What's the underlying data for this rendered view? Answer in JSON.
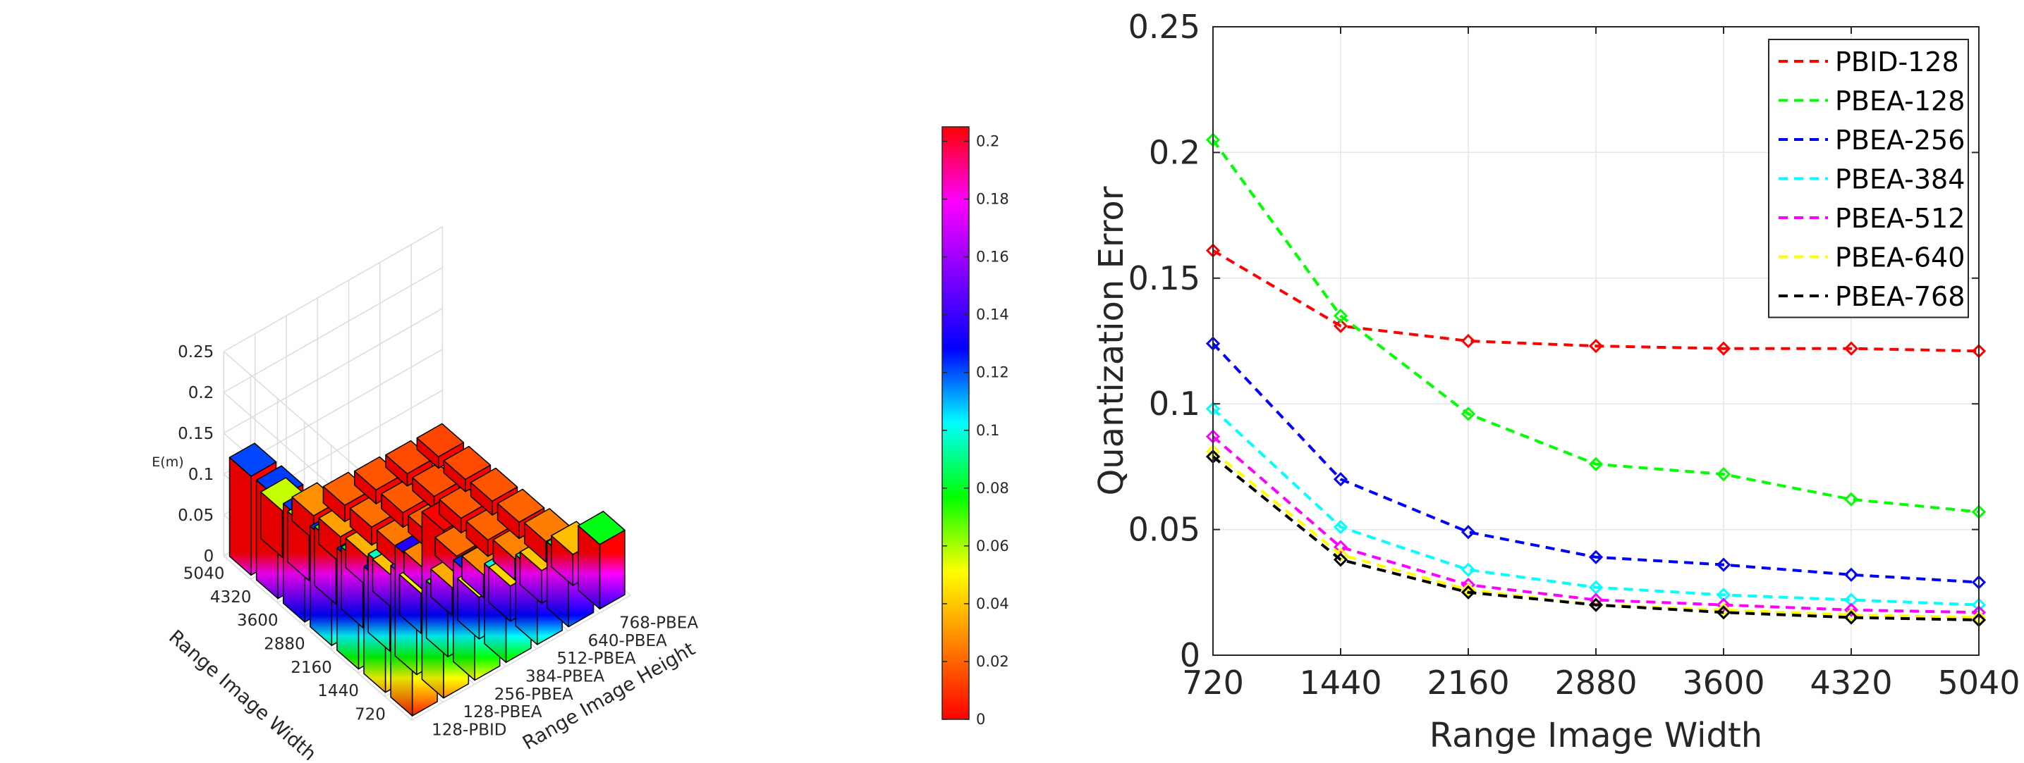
{
  "chart_data": [
    {
      "type": "bar3d",
      "zlabel": "E(m)",
      "xlabel": "Range Image Width",
      "ylabel": "Range Image Height",
      "width_categories": [
        "720",
        "1440",
        "2160",
        "2880",
        "3600",
        "4320",
        "5040"
      ],
      "height_categories": [
        "128-PBID",
        "128-PBEA",
        "256-PBEA",
        "384-PBEA",
        "512-PBEA",
        "640-PBEA",
        "768-PBEA"
      ],
      "zlim": [
        0,
        0.25
      ],
      "zticks": [
        "0",
        "0.05",
        "0.1",
        "0.15",
        "0.2",
        "0.25"
      ],
      "values": [
        [
          0.161,
          0.205,
          0.124,
          0.098,
          0.087,
          0.081,
          0.079
        ],
        [
          0.131,
          0.135,
          0.07,
          0.051,
          0.043,
          0.04,
          0.038
        ],
        [
          0.125,
          0.096,
          0.049,
          0.034,
          0.028,
          0.026,
          0.025
        ],
        [
          0.123,
          0.076,
          0.039,
          0.027,
          0.022,
          0.02,
          0.02
        ],
        [
          0.122,
          0.072,
          0.036,
          0.024,
          0.02,
          0.018,
          0.017
        ],
        [
          0.122,
          0.062,
          0.032,
          0.022,
          0.018,
          0.016,
          0.015
        ],
        [
          0.121,
          0.057,
          0.029,
          0.02,
          0.017,
          0.015,
          0.014
        ]
      ],
      "colormap": [
        "#ff0000",
        "#ff8000",
        "#ffff00",
        "#00ff00",
        "#00ffff",
        "#0000ff",
        "#8000ff",
        "#ff00ff",
        "#ff0000"
      ],
      "colorbar": {
        "range": [
          0,
          0.205
        ],
        "ticks": [
          "0",
          "0.02",
          "0.04",
          "0.06",
          "0.08",
          "0.1",
          "0.12",
          "0.14",
          "0.16",
          "0.18",
          "0.2"
        ]
      }
    },
    {
      "type": "line",
      "xlabel": "Range Image Width",
      "ylabel": "Quantization Error",
      "x": [
        720,
        1440,
        2160,
        2880,
        3600,
        4320,
        5040
      ],
      "xticks": [
        "720",
        "1440",
        "2160",
        "2880",
        "3600",
        "4320",
        "5040"
      ],
      "ylim": [
        0,
        0.25
      ],
      "yticks": [
        "0",
        "0.05",
        "0.1",
        "0.15",
        "0.2",
        "0.25"
      ],
      "grid": true,
      "legend_position": "top-right",
      "series": [
        {
          "name": "PBID-128",
          "color": "#ff0000",
          "values": [
            0.161,
            0.131,
            0.125,
            0.123,
            0.122,
            0.122,
            0.121
          ]
        },
        {
          "name": "PBEA-128",
          "color": "#00ff00",
          "values": [
            0.205,
            0.135,
            0.096,
            0.076,
            0.072,
            0.062,
            0.057
          ]
        },
        {
          "name": "PBEA-256",
          "color": "#0000ff",
          "values": [
            0.124,
            0.07,
            0.049,
            0.039,
            0.036,
            0.032,
            0.029
          ]
        },
        {
          "name": "PBEA-384",
          "color": "#00ffff",
          "values": [
            0.098,
            0.051,
            0.034,
            0.027,
            0.024,
            0.022,
            0.02
          ]
        },
        {
          "name": "PBEA-512",
          "color": "#ff00ff",
          "values": [
            0.087,
            0.043,
            0.028,
            0.022,
            0.02,
            0.018,
            0.017
          ]
        },
        {
          "name": "PBEA-640",
          "color": "#ffff00",
          "values": [
            0.081,
            0.04,
            0.026,
            0.02,
            0.018,
            0.016,
            0.015
          ]
        },
        {
          "name": "PBEA-768",
          "color": "#000000",
          "values": [
            0.079,
            0.038,
            0.025,
            0.02,
            0.017,
            0.015,
            0.014
          ]
        }
      ]
    }
  ]
}
